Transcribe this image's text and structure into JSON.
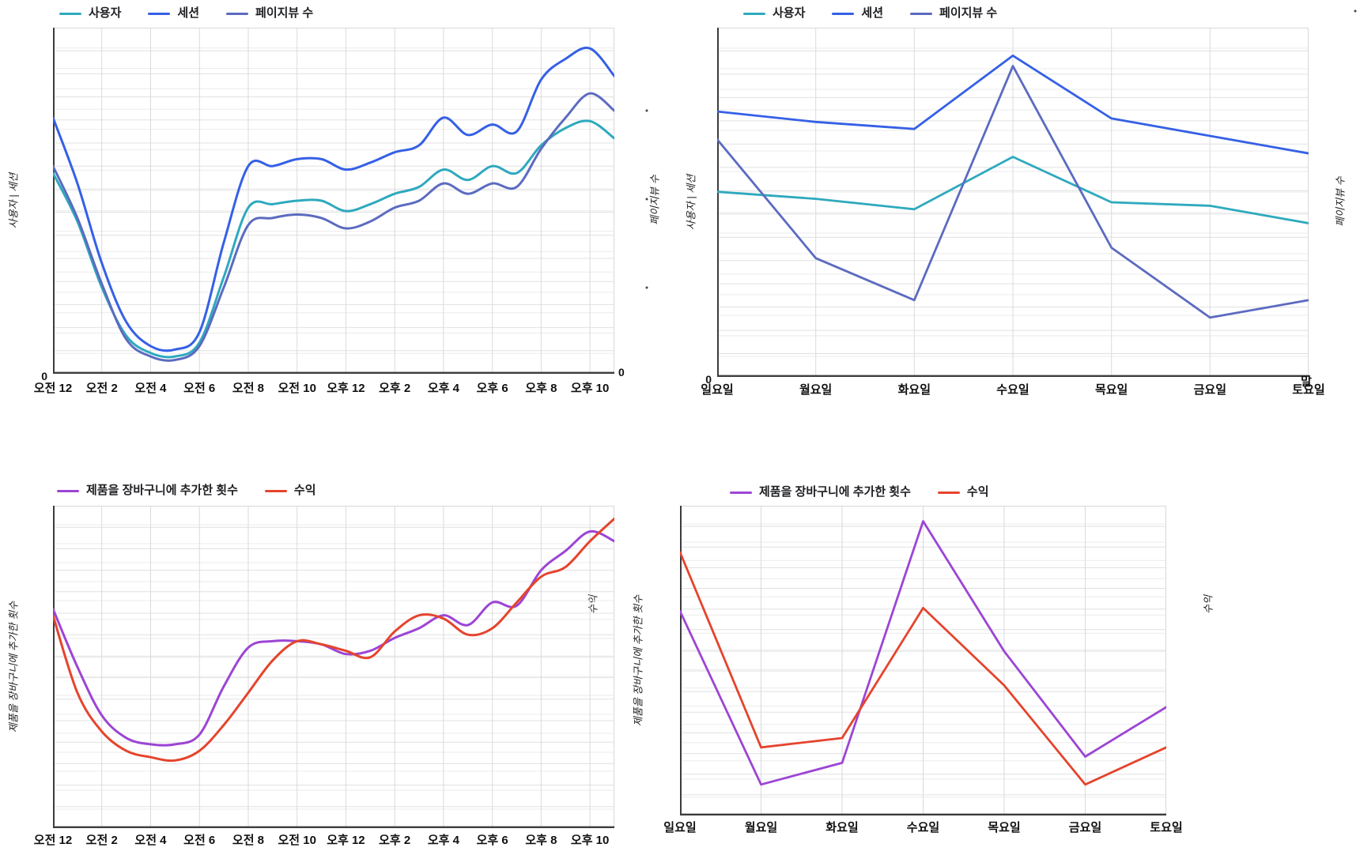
{
  "page": {
    "background": "#ffffff"
  },
  "colors": {
    "users": "#2EA9BE",
    "sessions": "#3560E6",
    "pageviews": "#5C6BC0",
    "add_to_cart": "#9C45D4",
    "revenue": "#E5442D",
    "grid_primary": "#e0e0e0",
    "grid_secondary": "#ebebeb",
    "grid_vertical": "#dadada",
    "plot_border": "#d9d9d9",
    "axis": "#3c3c3c",
    "tick_text": "#111111",
    "axis_title_text": "#1f1f1f"
  },
  "chart_data": [
    {
      "id": "users-sessions-hourly",
      "type": "spline",
      "left_axis_title": "사용자 | 세션",
      "right_axis_title": "페이지뷰 수",
      "x_tick_labels": [
        "오전 12",
        "오전 2",
        "오전 4",
        "오전 6",
        "오전 8",
        "오전 10",
        "오후 12",
        "오후 2",
        "오후 4",
        "오후 6",
        "오후 8",
        "오후 10"
      ],
      "ylim": [
        0,
        100
      ],
      "zero_labels": {
        "left": "0",
        "right": "0"
      },
      "series": [
        {
          "name": "사용자",
          "color": "#2EA9BE",
          "values": [
            58,
            44,
            25,
            11,
            6,
            5,
            9,
            28,
            48,
            49,
            50,
            50,
            47,
            49,
            52,
            54,
            59,
            56,
            60,
            58,
            66,
            71,
            73,
            68
          ]
        },
        {
          "name": "세션",
          "color": "#3560E6",
          "values": [
            74,
            55,
            32,
            15,
            8,
            7,
            12,
            38,
            60,
            60,
            62,
            62,
            59,
            61,
            64,
            66,
            74,
            69,
            72,
            70,
            85,
            91,
            94,
            86
          ]
        },
        {
          "name": "페이지뷰 수",
          "color": "#5C6BC0",
          "values": [
            60,
            45,
            26,
            10,
            5,
            4,
            8,
            25,
            43,
            45,
            46,
            45,
            42,
            44,
            48,
            50,
            55,
            52,
            55,
            54,
            65,
            74,
            81,
            76
          ]
        }
      ]
    },
    {
      "id": "users-sessions-daily",
      "type": "line",
      "left_axis_title": "사용자 | 세션",
      "right_axis_title": "페이지뷰 수",
      "x_tick_labels": [
        "일요일",
        "월요일",
        "화요일",
        "수요일",
        "목요일",
        "금요일",
        "토요일"
      ],
      "ylim": [
        0,
        100
      ],
      "zero_labels": {
        "left": "0"
      },
      "stray_label": "말",
      "series": [
        {
          "name": "사용자",
          "color": "#2EA9BE",
          "values": [
            53,
            51,
            48,
            63,
            50,
            49,
            44
          ]
        },
        {
          "name": "세션",
          "color": "#3560E6",
          "values": [
            76,
            73,
            71,
            92,
            74,
            69,
            64
          ]
        },
        {
          "name": "페이지뷰 수",
          "color": "#5C6BC0",
          "values": [
            68,
            34,
            22,
            89,
            37,
            17,
            22
          ]
        }
      ]
    },
    {
      "id": "cart-revenue-hourly",
      "type": "spline",
      "left_axis_title": "제품을 장바구니에 추가한 횟수",
      "right_axis_title": "수익",
      "x_tick_labels": [
        "오전 12",
        "오전 2",
        "오전 4",
        "오전 6",
        "오전 8",
        "오전 10",
        "오후 12",
        "오후 2",
        "오후 4",
        "오후 6",
        "오후 8",
        "오후 10"
      ],
      "ylim": [
        0,
        100
      ],
      "series": [
        {
          "name": "제품을 장바구니에 추가한 횟수",
          "color": "#9C45D4",
          "values": [
            68,
            50,
            35,
            28,
            26,
            26,
            29,
            44,
            56,
            58,
            58,
            57,
            54,
            55,
            59,
            62,
            66,
            63,
            70,
            69,
            80,
            86,
            92,
            89
          ]
        },
        {
          "name": "수익",
          "color": "#E5442D",
          "values": [
            66,
            42,
            30,
            24,
            22,
            21,
            24,
            32,
            42,
            52,
            58,
            57,
            55,
            53,
            61,
            66,
            65,
            60,
            62,
            70,
            78,
            81,
            89,
            96
          ]
        }
      ]
    },
    {
      "id": "cart-revenue-daily",
      "type": "line",
      "left_axis_title": "제품을 장바구니에 추가한 횟수",
      "right_axis_title": "수익",
      "x_tick_labels": [
        "일요일",
        "월요일",
        "화요일",
        "수요일",
        "목요일",
        "금요일",
        "토요일"
      ],
      "ylim": [
        0,
        100
      ],
      "series": [
        {
          "name": "제품을 장바구니에 추가한 횟수",
          "color": "#9C45D4",
          "values": [
            66,
            10,
            17,
            95,
            53,
            19,
            35
          ]
        },
        {
          "name": "수익",
          "color": "#E5442D",
          "values": [
            85,
            22,
            25,
            67,
            42,
            10,
            22
          ]
        }
      ]
    }
  ]
}
